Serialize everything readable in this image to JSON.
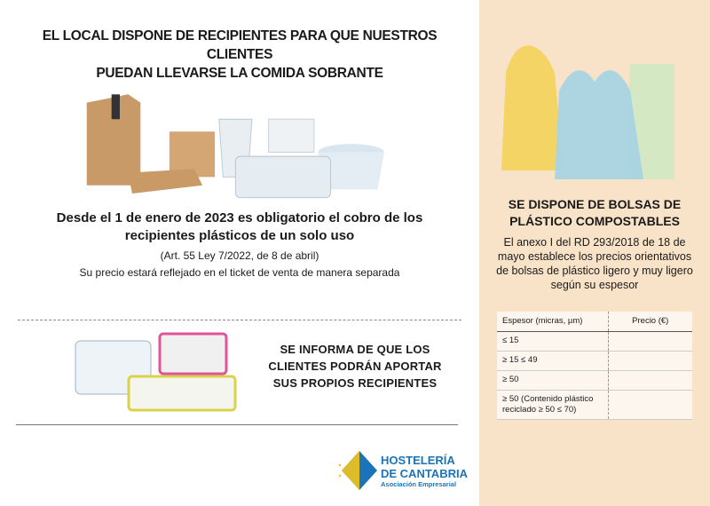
{
  "left": {
    "headline": [
      "EL LOCAL DISPONE DE RECIPIENTES PARA QUE NUESTROS CLIENTES",
      "PUEDAN LLEVARSE LA COMIDA SOBRANTE"
    ],
    "lead_line1": "Desde el 1 de enero de 2023 es obligatorio el cobro de los",
    "lead_line2": "recipientes plásticos de un solo uso",
    "article": "(Art. 55 Ley 7/2022, de 8 de abril)",
    "price_note": "Su precio estará reflejado en el ticket de venta de manera separada",
    "inform": [
      "SE INFORMA DE QUE LOS",
      "CLIENTES PODRÁN APORTAR",
      "SUS PROPIOS RECIPIENTES"
    ],
    "logo": {
      "line1": "HOSTELERÍA",
      "line2": "DE CANTABRIA",
      "line3": "Asociación Empresarial"
    }
  },
  "right": {
    "title": [
      "SE DISPONE DE BOLSAS DE",
      "PLÁSTICO COMPOSTABLES"
    ],
    "paragraph": "El anexo I del RD 293/2018 de 18 de mayo establece los precios orientativos de bolsas de plástico ligero y muy ligero según su espesor",
    "table": {
      "headers": [
        "Espesor (micras, µm)",
        "Precio (€)"
      ],
      "rows": [
        [
          "≤ 15",
          ""
        ],
        [
          "≥ 15 ≤ 49",
          ""
        ],
        [
          "≥ 50",
          ""
        ],
        [
          "≥ 50 (Contenido plástico reciclado ≥ 50 ≤ 70)",
          ""
        ]
      ]
    },
    "background": "#f9e3c8"
  }
}
